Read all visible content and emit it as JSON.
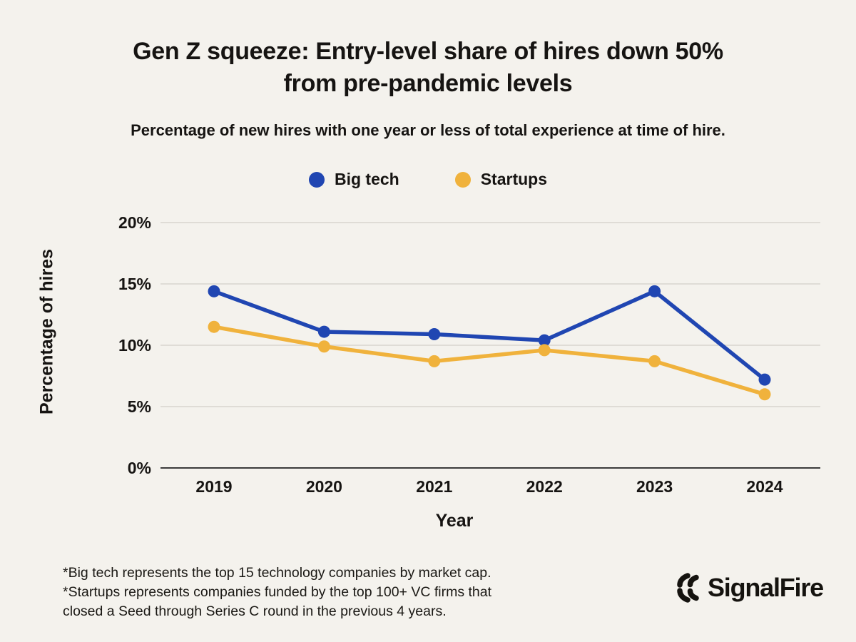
{
  "header": {
    "title_line1": "Gen Z squeeze: Entry-level share of hires down 50%",
    "title_line2": "from pre-pandemic levels",
    "subtitle": "Percentage of new hires with one year or less of total experience at time of hire."
  },
  "chart_data": {
    "type": "line",
    "title": "Gen Z squeeze: Entry-level share of hires down 50% from pre-pandemic levels",
    "subtitle": "Percentage of new hires with one year or less of total experience at time of hire.",
    "x": [
      "2019",
      "2020",
      "2021",
      "2022",
      "2023",
      "2024"
    ],
    "series": [
      {
        "name": "Big tech",
        "color": "#2046b2",
        "values": [
          14.4,
          11.1,
          10.9,
          10.4,
          14.4,
          7.2
        ]
      },
      {
        "name": "Startups",
        "color": "#f0b23c",
        "values": [
          11.5,
          9.9,
          8.7,
          9.6,
          8.7,
          6.0
        ]
      }
    ],
    "xlabel": "Year",
    "ylabel": "Percentage of hires",
    "ylim": [
      0,
      20
    ],
    "yticks": [
      0,
      5,
      10,
      15,
      20
    ],
    "ytick_suffix": "%",
    "grid": true,
    "legend_position": "top-center"
  },
  "footnote": {
    "lines": [
      "*Big tech represents the top 15 technology companies by market cap.",
      "*Startups represents companies funded by the top 100+ VC firms that",
      "closed a Seed through Series C round in the previous 4 years."
    ]
  },
  "logo": {
    "text": "SignalFire"
  },
  "colors": {
    "background": "#f4f2ed",
    "text": "#161412",
    "gridline": "#d8d5cf",
    "axis_line": "#3b3b3b",
    "big_tech": "#2046b2",
    "startups": "#f0b23c"
  }
}
